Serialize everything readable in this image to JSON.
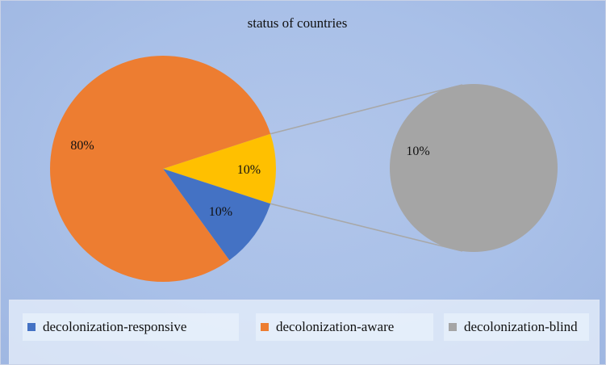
{
  "chart_data": {
    "type": "pie",
    "subtype": "pie-of-pie",
    "title": "status of countries",
    "series": [
      {
        "name": "decolonization-responsive",
        "value": 10,
        "label": "10%",
        "color": "#4472c4"
      },
      {
        "name": "decolonization-aware",
        "value": 80,
        "label": "80%",
        "color": "#ed7d31"
      },
      {
        "name": "decolonization-blind",
        "value": 10,
        "label": "10%",
        "color": "#a5a5a5"
      }
    ],
    "main_pie_aggregate": {
      "value": 10,
      "label": "10%",
      "color": "#ffc000"
    },
    "secondary_pie": {
      "series": "decolonization-blind",
      "label": "10%"
    },
    "legend_position": "bottom"
  }
}
